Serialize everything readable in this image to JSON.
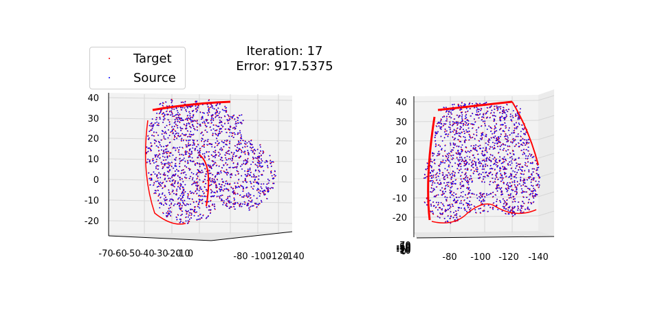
{
  "title_lines": [
    "Iteration: 17",
    "Error: 917.5375"
  ],
  "legend": [
    {
      "label": "Target",
      "color": "#ff0000"
    },
    {
      "label": "Source",
      "color": "#0000ff"
    }
  ],
  "chart_data": [
    {
      "type": "scatter",
      "dimensions": 3,
      "title": "",
      "series": [
        {
          "name": "Target",
          "color": "#ff0000"
        },
        {
          "name": "Source",
          "color": "#0000ff"
        }
      ],
      "x_ticks": [
        "-70",
        "-60",
        "-50",
        "-40",
        "-30",
        "-20",
        "-10",
        "0"
      ],
      "y_ticks": [
        "-80",
        "-100",
        "-120",
        "-140"
      ],
      "z_ticks": [
        "40",
        "30",
        "20",
        "10",
        "0",
        "-10",
        "-20"
      ],
      "xlim": [
        -70,
        0
      ],
      "ylim": [
        -140,
        -70
      ],
      "zlim": [
        -25,
        42
      ],
      "grid": true
    },
    {
      "type": "scatter",
      "dimensions": 3,
      "title": "",
      "series": [
        {
          "name": "Target",
          "color": "#ff0000"
        },
        {
          "name": "Source",
          "color": "#0000ff"
        }
      ],
      "x_ticks": [
        "-70",
        "-60",
        "-50",
        "-40",
        "-30",
        "-20",
        "-10",
        "0"
      ],
      "y_ticks": [
        "-80",
        "-100",
        "-120",
        "-140"
      ],
      "z_ticks": [
        "40",
        "30",
        "20",
        "10",
        "0",
        "-10",
        "-20"
      ],
      "xlim": [
        -70,
        0
      ],
      "ylim": [
        -140,
        -70
      ],
      "zlim": [
        -25,
        42
      ],
      "grid": true
    }
  ]
}
